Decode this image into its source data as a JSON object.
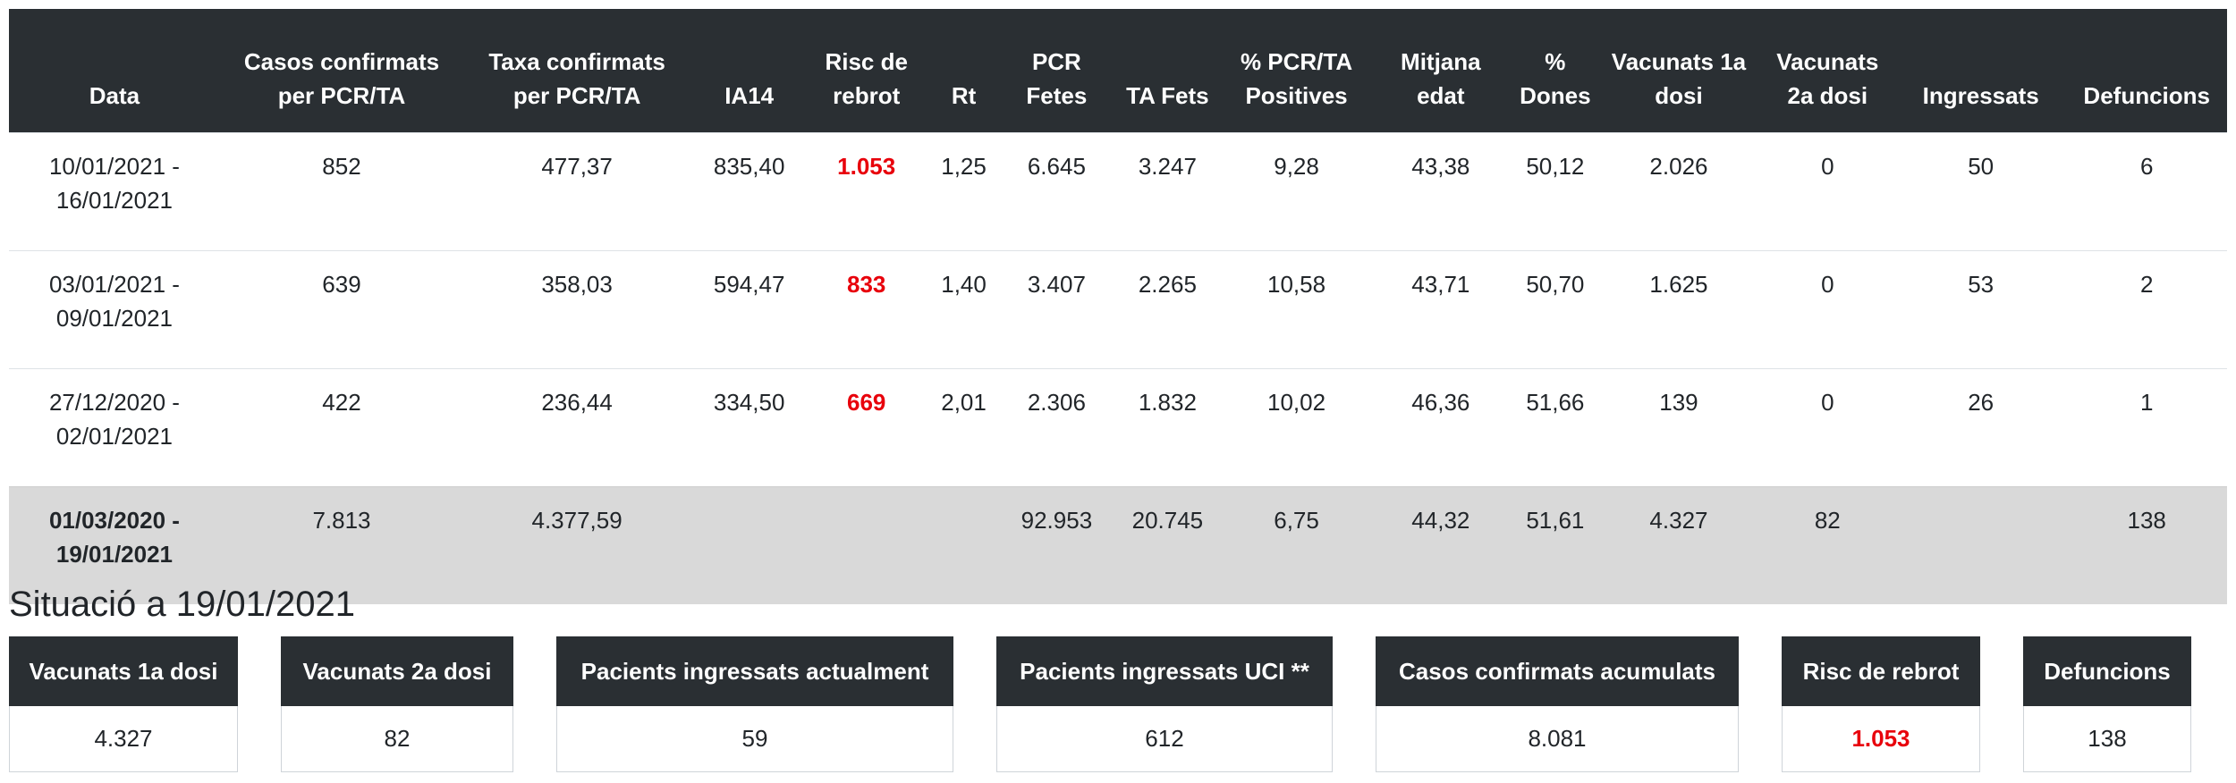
{
  "columns": [
    "Data",
    "Casos confirmats per PCR/TA",
    "Taxa confirmats per PCR/TA",
    "IA14",
    "Risc de rebrot",
    "Rt",
    "PCR Fetes",
    "TA Fets",
    "% PCR/TA Positives",
    "Mitjana edat",
    "% Dones",
    "Vacunats 1a dosi",
    "Vacunats 2a dosi",
    "Ingressats",
    "Defuncions"
  ],
  "rows": [
    [
      "10/01/2021 - 16/01/2021",
      "852",
      "477,37",
      "835,40",
      "1.053",
      "1,25",
      "6.645",
      "3.247",
      "9,28",
      "43,38",
      "50,12",
      "2.026",
      "0",
      "50",
      "6"
    ],
    [
      "03/01/2021 - 09/01/2021",
      "639",
      "358,03",
      "594,47",
      "833",
      "1,40",
      "3.407",
      "2.265",
      "10,58",
      "43,71",
      "50,70",
      "1.625",
      "0",
      "53",
      "2"
    ],
    [
      "27/12/2020 - 02/01/2021",
      "422",
      "236,44",
      "334,50",
      "669",
      "2,01",
      "2.306",
      "1.832",
      "10,02",
      "46,36",
      "51,66",
      "139",
      "0",
      "26",
      "1"
    ]
  ],
  "total_row": [
    "01/03/2020 - 19/01/2021",
    "7.813",
    "4.377,59",
    "",
    "",
    "",
    "92.953",
    "20.745",
    "6,75",
    "44,32",
    "51,61",
    "4.327",
    "82",
    "",
    "138"
  ],
  "situacio": {
    "title": "Situació a 19/01/2021",
    "cards": [
      {
        "label": "Vacunats 1a dosi",
        "value": "4.327"
      },
      {
        "label": "Vacunats 2a dosi",
        "value": "82"
      },
      {
        "label": "Pacients ingressats actualment",
        "value": "59"
      },
      {
        "label": "Pacients ingressats UCI **",
        "value": "612"
      },
      {
        "label": "Casos confirmats acumulats",
        "value": "8.081"
      },
      {
        "label": "Risc de rebrot",
        "value": "1.053"
      },
      {
        "label": "Defuncions",
        "value": "138"
      }
    ]
  },
  "colors": {
    "header_bg": "#2a2f33",
    "highlight_red": "#e8000b",
    "total_row_bg": "#d9d9d9"
  }
}
